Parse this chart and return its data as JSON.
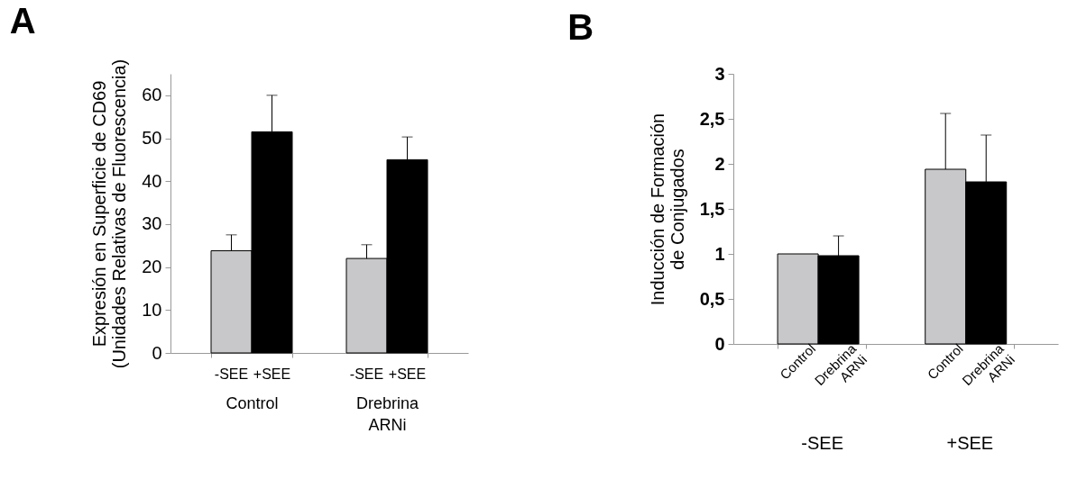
{
  "chart_data": [
    {
      "type": "bar",
      "title": "A",
      "ylabel": "Expresión en Superficie de CD69\n(Unidades Relativas de Fluorescencia)",
      "categories": [
        "Control",
        "Drebrina\nARNi"
      ],
      "series": [
        {
          "name": "-SEE",
          "color": "#c8c8ca",
          "values": [
            23.8,
            22
          ],
          "errors": [
            [
              23.8,
              27.5
            ],
            [
              22,
              25.2
            ]
          ]
        },
        {
          "name": "+SEE",
          "color": "#000000",
          "values": [
            51.5,
            45
          ],
          "errors": [
            [
              51.5,
              60
            ],
            [
              45,
              50.3
            ]
          ]
        }
      ],
      "ylim": [
        0,
        65
      ],
      "yticks": [
        0,
        10,
        20,
        30,
        40,
        50,
        60
      ],
      "grid": false,
      "legend": false
    },
    {
      "type": "bar",
      "title": "B",
      "ylabel": "Inducción de Formación\nde Conjugados",
      "categories": [
        "-SEE",
        "+SEE"
      ],
      "series": [
        {
          "name": "Control",
          "color": "#c8c8ca",
          "values": [
            1,
            1.94
          ],
          "errors": [
            null,
            [
              1.94,
              2.56
            ]
          ]
        },
        {
          "name": "Drebrina\nARNi",
          "color": "#000000",
          "values": [
            0.98,
            1.8
          ],
          "errors": [
            [
              0.98,
              1.2
            ],
            [
              1.8,
              2.32
            ]
          ]
        }
      ],
      "ylim": [
        0,
        3
      ],
      "yticks": [
        0,
        {
          "value": 0.5,
          "label": "0,5"
        },
        1,
        {
          "value": 1.5,
          "label": "1,5"
        },
        2,
        {
          "value": 2.5,
          "label": "2,5"
        },
        3
      ],
      "grid": false,
      "legend": false
    }
  ]
}
